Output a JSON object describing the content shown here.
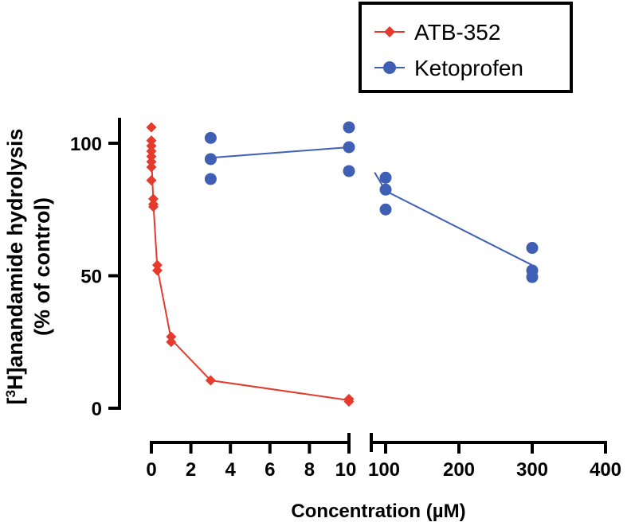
{
  "chart_data": {
    "type": "scatter",
    "title": "",
    "xlabel": "Concentration (µM)",
    "ylabel_prefix": "[",
    "ylabel_sup": "3",
    "ylabel_main": "H]anandamide hydrolysis",
    "ylabel_line2": "(% of control)",
    "ylim": [
      0,
      110
    ],
    "yticks": [
      0,
      50,
      100
    ],
    "x_segments": [
      {
        "range": [
          0,
          10
        ],
        "ticks": [
          0,
          2,
          4,
          6,
          8,
          10
        ]
      },
      {
        "range": [
          85,
          400
        ],
        "ticks": [
          100,
          200,
          300,
          400
        ]
      }
    ],
    "legend": {
      "position": "top-right"
    },
    "series": [
      {
        "name": "ATB-352",
        "color": "#e53a2c",
        "marker": "diamond",
        "points": [
          [
            0,
            106
          ],
          [
            0,
            101
          ],
          [
            0,
            99
          ],
          [
            0,
            97
          ],
          [
            0,
            95
          ],
          [
            0,
            93
          ],
          [
            0,
            91
          ],
          [
            0,
            86
          ],
          [
            0.1,
            79
          ],
          [
            0.1,
            77
          ],
          [
            0.1,
            76
          ],
          [
            0.3,
            54
          ],
          [
            0.3,
            52
          ],
          [
            1,
            27
          ],
          [
            1,
            25
          ],
          [
            3,
            10.5
          ],
          [
            10,
            3.5
          ],
          [
            10,
            2.5
          ]
        ],
        "line": [
          [
            0,
            96
          ],
          [
            0.1,
            77
          ],
          [
            0.3,
            53
          ],
          [
            1,
            26
          ],
          [
            3,
            10.5
          ],
          [
            10,
            3
          ]
        ]
      },
      {
        "name": "Ketoprofen",
        "color": "#3f5fb5",
        "marker": "circle",
        "points": [
          [
            3,
            102
          ],
          [
            3,
            94
          ],
          [
            3,
            86.5
          ],
          [
            10,
            106
          ],
          [
            10,
            98.5
          ],
          [
            10,
            89.5
          ],
          [
            100,
            87
          ],
          [
            100,
            82.5
          ],
          [
            100,
            75
          ],
          [
            300,
            60.5
          ],
          [
            300,
            52
          ],
          [
            300,
            49.5
          ]
        ],
        "line_segments": [
          [
            [
              3,
              94.5
            ],
            [
              10,
              98.5
            ]
          ],
          [
            [
              85,
              89
            ],
            [
              100,
              82
            ],
            [
              300,
              54
            ]
          ]
        ]
      }
    ]
  }
}
